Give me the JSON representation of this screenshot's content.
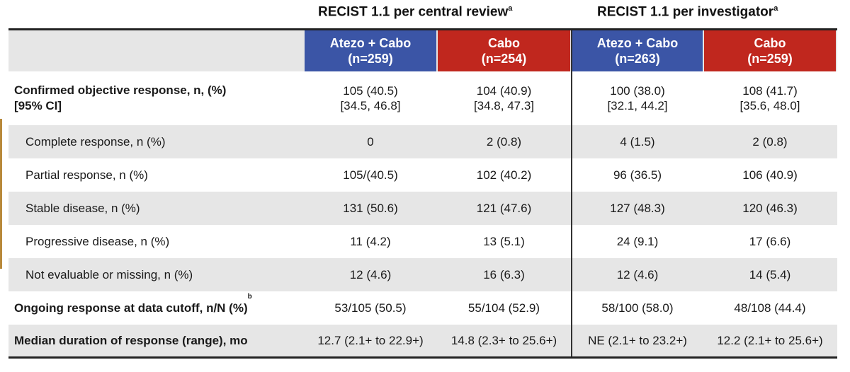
{
  "groups": [
    {
      "title": "RECIST 1.1 per central review",
      "sup": "a"
    },
    {
      "title": "RECIST 1.1 per investigator",
      "sup": "a"
    }
  ],
  "arms": [
    {
      "name": "Atezo + Cabo",
      "n": "(n=259)",
      "color": "#3b55a6"
    },
    {
      "name": "Cabo",
      "n": "(n=254)",
      "color": "#c0271e"
    },
    {
      "name": "Atezo + Cabo",
      "n": "(n=263)",
      "color": "#3b55a6"
    },
    {
      "name": "Cabo",
      "n": "(n=259)",
      "color": "#c0271e"
    }
  ],
  "rows": [
    {
      "label": "Confirmed objective response, n, (%)",
      "label2": "[95% CI]",
      "bold": true,
      "cells": [
        [
          "105 (40.5)",
          "[34.5, 46.8]"
        ],
        [
          "104 (40.9)",
          "[34.8, 47.3]"
        ],
        [
          "100 (38.0)",
          "[32.1, 44.2]"
        ],
        [
          "108 (41.7)",
          "[35.6, 48.0]"
        ]
      ]
    },
    {
      "label": "Complete response, n (%)",
      "cells": [
        "0",
        "2 (0.8)",
        "4 (1.5)",
        "2 (0.8)"
      ]
    },
    {
      "label": "Partial response, n (%)",
      "cells": [
        "105/(40.5)",
        "102 (40.2)",
        "96 (36.5)",
        "106 (40.9)"
      ]
    },
    {
      "label": "Stable disease, n (%)",
      "cells": [
        "131 (50.6)",
        "121 (47.6)",
        "127 (48.3)",
        "120 (46.3)"
      ]
    },
    {
      "label": "Progressive disease, n (%)",
      "cells": [
        "11 (4.2)",
        "13 (5.1)",
        "24 (9.1)",
        "17 (6.6)"
      ]
    },
    {
      "label": "Not evaluable or missing, n (%)",
      "cells": [
        "12 (4.6)",
        "16 (6.3)",
        "12 (4.6)",
        "14 (5.4)"
      ]
    },
    {
      "label": "Ongoing response at data cutoff, n/N (%)",
      "sup": "b",
      "bold": true,
      "cells": [
        "53/105 (50.5)",
        "55/104 (52.9)",
        "58/100 (58.0)",
        "48/108 (44.4)"
      ]
    },
    {
      "label": "Median duration of response (range), mo",
      "bold": true,
      "cells": [
        "12.7 (2.1+ to 22.9+)",
        "14.8 (2.3+ to 25.6+)",
        "NE (2.1+ to 23.2+)",
        "12.2 (2.1+ to 25.6+)"
      ]
    }
  ]
}
